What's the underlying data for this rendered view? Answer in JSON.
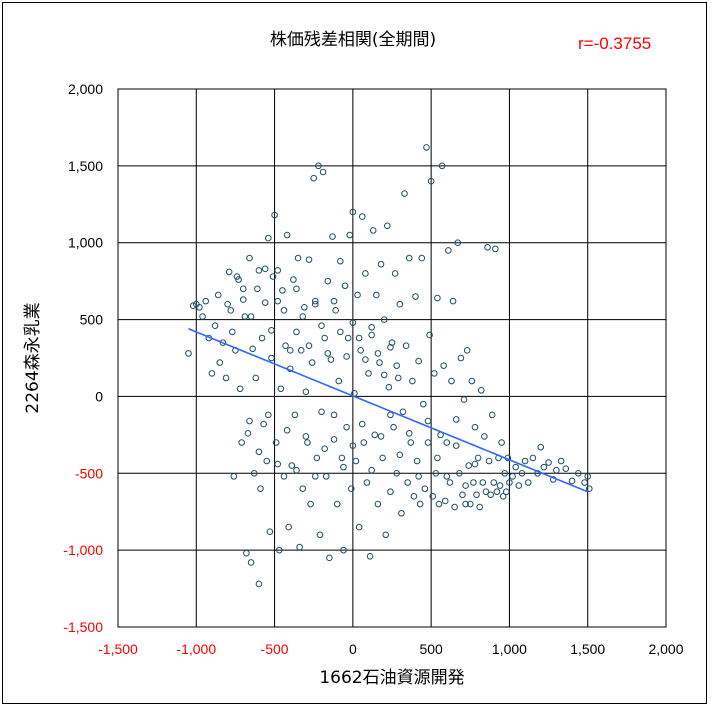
{
  "chart_data": {
    "type": "scatter",
    "title": "株価残差相関(全期間)",
    "correlation_label": "r=-0.3755",
    "xlabel": "1662石油資源開発",
    "ylabel": "2264森永乳業",
    "xlim": [
      -1500,
      2000
    ],
    "ylim": [
      -1500,
      2000
    ],
    "x_ticks": [
      "-1,500",
      "-1,000",
      "-500",
      "0",
      "500",
      "1,000",
      "1,500",
      "2,000"
    ],
    "y_ticks": [
      "2,000",
      "1,500",
      "1,000",
      "500",
      "0",
      "-500",
      "-1,000",
      "-1,500"
    ],
    "grid": true,
    "regression_line": {
      "x": [
        -1050,
        1500
      ],
      "y": [
        440,
        -620
      ]
    },
    "series": [
      {
        "marker": "circle",
        "points": [
          [
            -1050,
            280
          ],
          [
            -1020,
            590
          ],
          [
            -1000,
            600
          ],
          [
            -980,
            580
          ],
          [
            -960,
            520
          ],
          [
            -940,
            620
          ],
          [
            -920,
            380
          ],
          [
            -900,
            150
          ],
          [
            -880,
            460
          ],
          [
            -860,
            660
          ],
          [
            -850,
            220
          ],
          [
            -830,
            350
          ],
          [
            -810,
            120
          ],
          [
            -800,
            600
          ],
          [
            -790,
            810
          ],
          [
            -780,
            560
          ],
          [
            -770,
            420
          ],
          [
            -760,
            -520
          ],
          [
            -750,
            300
          ],
          [
            -740,
            780
          ],
          [
            -730,
            760
          ],
          [
            -720,
            50
          ],
          [
            -710,
            -300
          ],
          [
            -700,
            630
          ],
          [
            -690,
            520
          ],
          [
            -680,
            -1020
          ],
          [
            -670,
            -240
          ],
          [
            -660,
            900
          ],
          [
            -650,
            -1080
          ],
          [
            -640,
            310
          ],
          [
            -630,
            -500
          ],
          [
            -620,
            120
          ],
          [
            -610,
            700
          ],
          [
            -600,
            -1220
          ],
          [
            -590,
            -600
          ],
          [
            -580,
            380
          ],
          [
            -570,
            -180
          ],
          [
            -560,
            830
          ],
          [
            -550,
            -420
          ],
          [
            -540,
            1030
          ],
          [
            -530,
            -880
          ],
          [
            -520,
            250
          ],
          [
            -510,
            780
          ],
          [
            -500,
            1180
          ],
          [
            -490,
            -300
          ],
          [
            -480,
            620
          ],
          [
            -470,
            -1000
          ],
          [
            -460,
            50
          ],
          [
            -450,
            690
          ],
          [
            -440,
            -520
          ],
          [
            -430,
            330
          ],
          [
            -420,
            1050
          ],
          [
            -410,
            -850
          ],
          [
            -400,
            180
          ],
          [
            -390,
            -450
          ],
          [
            -380,
            760
          ],
          [
            -370,
            -120
          ],
          [
            -360,
            420
          ],
          [
            -350,
            900
          ],
          [
            -340,
            -980
          ],
          [
            -330,
            300
          ],
          [
            -320,
            -600
          ],
          [
            -310,
            580
          ],
          [
            -300,
            30
          ],
          [
            -290,
            -300
          ],
          [
            -280,
            890
          ],
          [
            -270,
            -700
          ],
          [
            -260,
            220
          ],
          [
            -250,
            1420
          ],
          [
            -240,
            600
          ],
          [
            -230,
            -400
          ],
          [
            -220,
            1500
          ],
          [
            -210,
            -900
          ],
          [
            -200,
            -100
          ],
          [
            -190,
            1460
          ],
          [
            -180,
            380
          ],
          [
            -170,
            -520
          ],
          [
            -160,
            750
          ],
          [
            -150,
            -1050
          ],
          [
            -140,
            240
          ],
          [
            -130,
            1040
          ],
          [
            -120,
            -280
          ],
          [
            -110,
            560
          ],
          [
            -100,
            -700
          ],
          [
            -90,
            100
          ],
          [
            -80,
            880
          ],
          [
            -70,
            -400
          ],
          [
            -60,
            -1000
          ],
          [
            -50,
            720
          ],
          [
            -40,
            -200
          ],
          [
            -30,
            380
          ],
          [
            -20,
            1050
          ],
          [
            -10,
            -600
          ],
          [
            0,
            1200
          ],
          [
            10,
            20
          ],
          [
            20,
            -420
          ],
          [
            30,
            660
          ],
          [
            40,
            -850
          ],
          [
            50,
            300
          ],
          [
            60,
            1170
          ],
          [
            70,
            -300
          ],
          [
            80,
            800
          ],
          [
            90,
            -560
          ],
          [
            100,
            150
          ],
          [
            110,
            -1040
          ],
          [
            120,
            450
          ],
          [
            130,
            1080
          ],
          [
            140,
            -250
          ],
          [
            150,
            660
          ],
          [
            160,
            -700
          ],
          [
            170,
            220
          ],
          [
            180,
            860
          ],
          [
            190,
            -400
          ],
          [
            200,
            500
          ],
          [
            210,
            -900
          ],
          [
            220,
            1110
          ],
          [
            230,
            60
          ],
          [
            240,
            -620
          ],
          [
            250,
            350
          ],
          [
            260,
            -200
          ],
          [
            270,
            800
          ],
          [
            280,
            -500
          ],
          [
            290,
            120
          ],
          [
            300,
            600
          ],
          [
            310,
            -760
          ],
          [
            320,
            -100
          ],
          [
            330,
            1320
          ],
          [
            340,
            330
          ],
          [
            350,
            -560
          ],
          [
            360,
            900
          ],
          [
            370,
            -300
          ],
          [
            380,
            100
          ],
          [
            390,
            -650
          ],
          [
            400,
            650
          ],
          [
            410,
            -420
          ],
          [
            420,
            230
          ],
          [
            430,
            -700
          ],
          [
            440,
            900
          ],
          [
            450,
            -50
          ],
          [
            460,
            -600
          ],
          [
            470,
            1620
          ],
          [
            480,
            -300
          ],
          [
            490,
            400
          ],
          [
            500,
            1400
          ],
          [
            510,
            -650
          ],
          [
            520,
            150
          ],
          [
            530,
            -500
          ],
          [
            540,
            640
          ],
          [
            550,
            -700
          ],
          [
            560,
            -250
          ],
          [
            570,
            1500
          ],
          [
            580,
            200
          ],
          [
            590,
            -680
          ],
          [
            600,
            -300
          ],
          [
            610,
            950
          ],
          [
            620,
            -560
          ],
          [
            630,
            100
          ],
          [
            640,
            620
          ],
          [
            650,
            -720
          ],
          [
            660,
            -150
          ],
          [
            670,
            1000
          ],
          [
            680,
            -500
          ],
          [
            690,
            250
          ],
          [
            700,
            -640
          ],
          [
            710,
            -20
          ],
          [
            720,
            -700
          ],
          [
            730,
            300
          ],
          [
            740,
            -450
          ],
          [
            750,
            -700
          ],
          [
            760,
            100
          ],
          [
            770,
            -560
          ],
          [
            780,
            -200
          ],
          [
            790,
            -640
          ],
          [
            800,
            -400
          ],
          [
            810,
            -720
          ],
          [
            820,
            40
          ],
          [
            830,
            -560
          ],
          [
            840,
            -260
          ],
          [
            850,
            -620
          ],
          [
            860,
            970
          ],
          [
            870,
            -420
          ],
          [
            880,
            -640
          ],
          [
            890,
            -120
          ],
          [
            900,
            -560
          ],
          [
            910,
            960
          ],
          [
            920,
            -620
          ],
          [
            930,
            -400
          ],
          [
            940,
            -580
          ],
          [
            950,
            -300
          ],
          [
            960,
            -650
          ],
          [
            970,
            -500
          ],
          [
            980,
            -620
          ],
          [
            990,
            -400
          ],
          [
            1000,
            -560
          ],
          [
            1020,
            -520
          ],
          [
            1040,
            -460
          ],
          [
            1060,
            -580
          ],
          [
            1080,
            -500
          ],
          [
            1100,
            -420
          ],
          [
            1120,
            -560
          ],
          [
            1150,
            -400
          ],
          [
            1180,
            -500
          ],
          [
            1200,
            -330
          ],
          [
            1220,
            -460
          ],
          [
            1250,
            -430
          ],
          [
            1280,
            -540
          ],
          [
            1300,
            -480
          ],
          [
            1330,
            -420
          ],
          [
            1360,
            -470
          ],
          [
            1400,
            -550
          ],
          [
            1440,
            -500
          ],
          [
            1480,
            -560
          ],
          [
            1500,
            -520
          ],
          [
            1510,
            -600
          ],
          [
            -700,
            700
          ],
          [
            -650,
            520
          ],
          [
            -600,
            820
          ],
          [
            -560,
            610
          ],
          [
            -520,
            430
          ],
          [
            -480,
            820
          ],
          [
            -440,
            560
          ],
          [
            -400,
            300
          ],
          [
            -360,
            700
          ],
          [
            -320,
            520
          ],
          [
            -280,
            330
          ],
          [
            -240,
            620
          ],
          [
            -200,
            460
          ],
          [
            -160,
            280
          ],
          [
            -120,
            620
          ],
          [
            -80,
            420
          ],
          [
            -40,
            260
          ],
          [
            0,
            480
          ],
          [
            40,
            380
          ],
          [
            80,
            240
          ],
          [
            120,
            400
          ],
          [
            160,
            280
          ],
          [
            200,
            140
          ],
          [
            240,
            320
          ],
          [
            280,
            200
          ],
          [
            -660,
            -160
          ],
          [
            -600,
            -360
          ],
          [
            -540,
            -120
          ],
          [
            -480,
            -440
          ],
          [
            -420,
            -220
          ],
          [
            -360,
            -480
          ],
          [
            -300,
            -260
          ],
          [
            -240,
            -520
          ],
          [
            -180,
            -340
          ],
          [
            -120,
            -120
          ],
          [
            -60,
            -460
          ],
          [
            0,
            -320
          ],
          [
            60,
            -180
          ],
          [
            120,
            -480
          ],
          [
            180,
            -260
          ],
          [
            240,
            -120
          ],
          [
            300,
            -380
          ],
          [
            360,
            -240
          ],
          [
            420,
            -520
          ],
          [
            480,
            -160
          ],
          [
            540,
            -400
          ],
          [
            600,
            -520
          ],
          [
            660,
            -320
          ],
          [
            720,
            -580
          ],
          [
            780,
            -440
          ]
        ]
      }
    ]
  }
}
